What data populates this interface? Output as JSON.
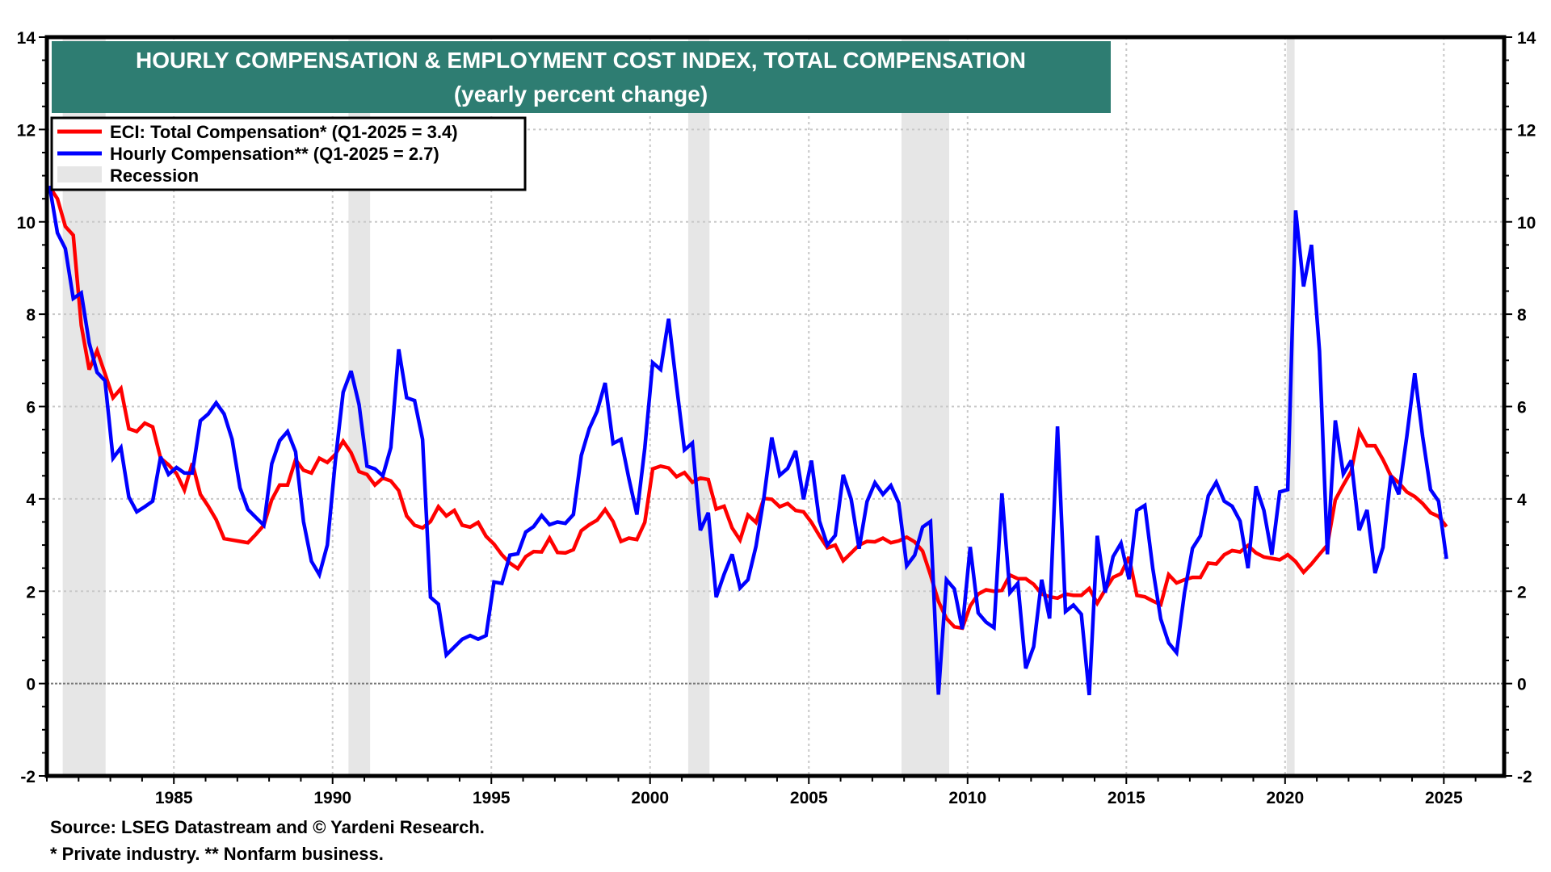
{
  "chart_data": {
    "type": "line",
    "title": "HOURLY COMPENSATION & EMPLOYMENT COST INDEX, TOTAL COMPENSATION",
    "subtitle": "(yearly percent change)",
    "xlabel": "",
    "ylabel": "",
    "ylim": [
      -2,
      14
    ],
    "xlim": [
      1981.0,
      2026.9
    ],
    "y_ticks": [
      "14",
      "12",
      "10",
      "8",
      "6",
      "4",
      "2",
      "0",
      "-2"
    ],
    "y_tick_values": [
      14,
      12,
      10,
      8,
      6,
      4,
      2,
      0,
      -2
    ],
    "x_ticks": [
      "1985",
      "1990",
      "1995",
      "2000",
      "2005",
      "2010",
      "2015",
      "2020",
      "2025"
    ],
    "x_tick_values": [
      1985,
      1990,
      1995,
      2000,
      2005,
      2010,
      2015,
      2020,
      2025
    ],
    "grid": true,
    "dual_y_axis_mirrored": true,
    "legend_position": "top-left",
    "x_start": 1981.083,
    "x_step": 0.25,
    "frequency": "quarterly",
    "series": [
      {
        "name": "ECI: Total Compensation* (Q1-2025 = 3.4)",
        "color": "#ff0000",
        "values": [
          10.76,
          10.5,
          9.9,
          9.71,
          7.76,
          6.8,
          7.21,
          6.71,
          6.19,
          6.39,
          5.52,
          5.46,
          5.64,
          5.56,
          4.88,
          4.74,
          4.55,
          4.19,
          4.77,
          4.1,
          3.84,
          3.55,
          3.14,
          3.11,
          3.08,
          3.05,
          3.23,
          3.43,
          3.98,
          4.3,
          4.3,
          4.85,
          4.62,
          4.56,
          4.88,
          4.79,
          4.96,
          5.25,
          5.0,
          4.59,
          4.53,
          4.3,
          4.45,
          4.39,
          4.18,
          3.63,
          3.43,
          3.37,
          3.51,
          3.83,
          3.63,
          3.75,
          3.43,
          3.39,
          3.49,
          3.19,
          3.02,
          2.79,
          2.61,
          2.49,
          2.75,
          2.86,
          2.85,
          3.15,
          2.84,
          2.83,
          2.9,
          3.31,
          3.44,
          3.54,
          3.77,
          3.51,
          3.08,
          3.15,
          3.12,
          3.49,
          4.65,
          4.71,
          4.67,
          4.48,
          4.57,
          4.36,
          4.45,
          4.42,
          3.78,
          3.84,
          3.37,
          3.11,
          3.65,
          3.49,
          4.01,
          3.99,
          3.83,
          3.9,
          3.75,
          3.72,
          3.49,
          3.2,
          2.94,
          3.0,
          2.66,
          2.83,
          3.0,
          3.08,
          3.07,
          3.15,
          3.05,
          3.09,
          3.17,
          3.07,
          2.87,
          2.35,
          1.78,
          1.41,
          1.23,
          1.2,
          1.68,
          1.94,
          2.03,
          2.0,
          2.02,
          2.35,
          2.27,
          2.27,
          2.15,
          1.94,
          1.88,
          1.85,
          1.94,
          1.91,
          1.91,
          2.06,
          1.74,
          2.03,
          2.3,
          2.38,
          2.74,
          1.91,
          1.88,
          1.79,
          1.71,
          2.36,
          2.18,
          2.25,
          2.3,
          2.3,
          2.61,
          2.59,
          2.79,
          2.88,
          2.85,
          2.99,
          2.83,
          2.74,
          2.71,
          2.68,
          2.79,
          2.64,
          2.41,
          2.59,
          2.8,
          3.0,
          3.98,
          4.3,
          4.6,
          5.46,
          5.15,
          5.15,
          4.85,
          4.5,
          4.35,
          4.15,
          4.05,
          3.9,
          3.7,
          3.62,
          3.4
        ]
      },
      {
        "name": "Hourly Compensation** (Q1-2025 = 2.7)",
        "color": "#0000ff",
        "values": [
          10.78,
          9.76,
          9.42,
          8.34,
          8.46,
          7.38,
          6.74,
          6.56,
          4.88,
          5.11,
          4.04,
          3.72,
          3.83,
          3.95,
          4.91,
          4.53,
          4.68,
          4.56,
          4.56,
          5.69,
          5.84,
          6.08,
          5.84,
          5.29,
          4.24,
          3.77,
          3.6,
          3.43,
          4.76,
          5.26,
          5.46,
          5.02,
          3.51,
          2.65,
          2.36,
          3.0,
          4.8,
          6.31,
          6.77,
          6.04,
          4.71,
          4.65,
          4.5,
          5.11,
          7.24,
          6.19,
          6.13,
          5.29,
          1.87,
          1.72,
          0.62,
          0.79,
          0.96,
          1.04,
          0.96,
          1.04,
          2.2,
          2.17,
          2.78,
          2.81,
          3.28,
          3.4,
          3.64,
          3.44,
          3.5,
          3.47,
          3.66,
          4.94,
          5.52,
          5.9,
          6.51,
          5.2,
          5.29,
          4.44,
          3.66,
          5.1,
          6.95,
          6.8,
          7.9,
          6.45,
          5.06,
          5.21,
          3.32,
          3.7,
          1.87,
          2.37,
          2.8,
          2.07,
          2.25,
          2.97,
          4.02,
          5.33,
          4.51,
          4.66,
          5.04,
          3.99,
          4.83,
          3.52,
          3.0,
          3.21,
          4.52,
          3.99,
          2.92,
          3.94,
          4.35,
          4.1,
          4.29,
          3.91,
          2.55,
          2.78,
          3.39,
          3.51,
          -0.24,
          2.25,
          2.05,
          1.18,
          2.96,
          1.53,
          1.33,
          1.21,
          4.12,
          1.97,
          2.17,
          0.33,
          0.8,
          2.25,
          1.41,
          5.57,
          1.56,
          1.7,
          1.5,
          -0.25,
          3.2,
          1.97,
          2.75,
          3.04,
          2.26,
          3.75,
          3.86,
          2.5,
          1.4,
          0.88,
          0.67,
          1.97,
          2.93,
          3.2,
          4.07,
          4.36,
          3.95,
          3.84,
          3.52,
          2.5,
          4.27,
          3.75,
          2.79,
          4.15,
          4.2,
          10.25,
          8.6,
          9.5,
          7.2,
          2.8,
          5.7,
          4.54,
          4.83,
          3.32,
          3.76,
          2.39,
          2.95,
          4.5,
          4.1,
          5.35,
          6.72,
          5.35,
          4.2,
          3.95,
          2.7
        ]
      }
    ],
    "recessions": [
      [
        1981.5,
        1982.85
      ],
      [
        1990.5,
        1991.18
      ],
      [
        2001.2,
        2001.87
      ],
      [
        2007.92,
        2009.42
      ],
      [
        2020.05,
        2020.3
      ]
    ],
    "legend": [
      {
        "label": "ECI: Total Compensation* (Q1-2025 = 3.4)",
        "type": "line",
        "color": "#ff0000"
      },
      {
        "label": "Hourly Compensation** (Q1-2025 = 2.7)",
        "type": "line",
        "color": "#0000ff"
      },
      {
        "label": "Recession",
        "type": "band",
        "color": "#e6e6e6"
      }
    ],
    "annotations": [
      "Source: LSEG Datastream and © Yardeni Research.",
      "* Private industry.  ** Nonfarm business."
    ]
  },
  "colors": {
    "title_bg": "#2e7d72",
    "recession": "#e6e6e6",
    "grid": "#c8c8c8",
    "zero_line": "#7a7a7a"
  },
  "footer": {
    "source": "Source: LSEG Datastream and © Yardeni Research.",
    "notes": "* Private industry.  ** Nonfarm business."
  }
}
